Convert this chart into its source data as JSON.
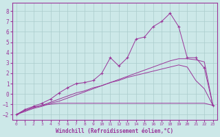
{
  "background_color": "#cce8e8",
  "grid_color": "#aacccc",
  "line_color": "#993399",
  "xlabel": "Windchill (Refroidissement éolien,°C)",
  "xlim": [
    -0.5,
    23.5
  ],
  "ylim": [
    -2.5,
    8.8
  ],
  "xticks": [
    0,
    1,
    2,
    3,
    4,
    5,
    6,
    7,
    8,
    9,
    10,
    11,
    12,
    13,
    14,
    15,
    16,
    17,
    18,
    19,
    20,
    21,
    22,
    23
  ],
  "yticks": [
    -2,
    -1,
    0,
    1,
    2,
    3,
    4,
    5,
    6,
    7,
    8
  ],
  "line1_x": [
    0,
    1,
    2,
    3,
    4,
    5,
    6,
    7,
    8,
    9,
    10,
    11,
    12,
    13,
    14,
    15,
    16,
    17,
    18,
    19,
    20,
    21,
    22,
    23
  ],
  "line1_y": [
    -2.0,
    -1.5,
    -1.2,
    -0.9,
    -0.5,
    0.1,
    0.6,
    1.0,
    1.1,
    1.3,
    2.0,
    3.5,
    2.7,
    3.5,
    5.3,
    5.5,
    6.5,
    7.0,
    7.8,
    6.5,
    3.5,
    3.5,
    2.5,
    -1.1
  ],
  "line2_x": [
    0,
    1,
    2,
    3,
    4,
    5,
    6,
    7,
    8,
    9,
    10,
    11,
    12,
    13,
    14,
    15,
    16,
    17,
    18,
    19,
    20,
    21,
    22,
    23
  ],
  "line2_y": [
    -2.0,
    -1.6,
    -1.3,
    -1.1,
    -1.0,
    -0.9,
    -0.9,
    -0.9,
    -0.9,
    -0.9,
    -0.9,
    -0.9,
    -0.9,
    -0.9,
    -0.9,
    -0.9,
    -0.9,
    -0.9,
    -0.9,
    -0.9,
    -0.9,
    -0.9,
    -0.9,
    -1.1
  ],
  "line3_x": [
    0,
    1,
    2,
    3,
    4,
    5,
    6,
    7,
    8,
    9,
    10,
    11,
    12,
    13,
    14,
    15,
    16,
    17,
    18,
    19,
    20,
    21,
    22,
    23
  ],
  "line3_y": [
    -2.0,
    -1.6,
    -1.3,
    -1.1,
    -0.8,
    -0.5,
    -0.2,
    0.1,
    0.3,
    0.6,
    0.8,
    1.1,
    1.3,
    1.6,
    1.8,
    2.0,
    2.2,
    2.4,
    2.6,
    2.8,
    2.6,
    1.3,
    0.5,
    -1.1
  ],
  "line4_x": [
    0,
    1,
    2,
    3,
    4,
    5,
    6,
    7,
    8,
    9,
    10,
    11,
    12,
    13,
    14,
    15,
    16,
    17,
    18,
    19,
    20,
    21,
    22,
    23
  ],
  "line4_y": [
    -2.0,
    -1.7,
    -1.4,
    -1.2,
    -0.9,
    -0.7,
    -0.4,
    -0.1,
    0.2,
    0.5,
    0.8,
    1.1,
    1.4,
    1.7,
    2.0,
    2.3,
    2.6,
    2.9,
    3.2,
    3.4,
    3.4,
    3.3,
    3.1,
    -1.1
  ],
  "marker": "+"
}
